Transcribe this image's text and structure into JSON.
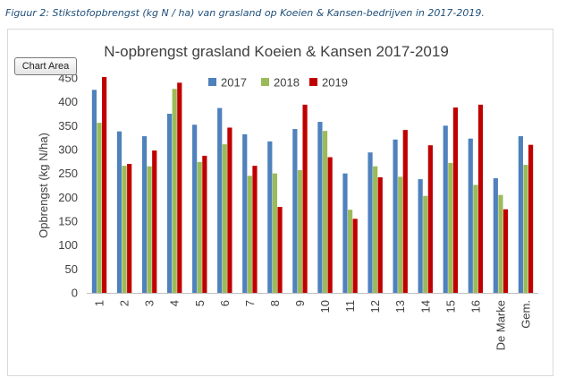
{
  "caption": "Figuur 2: Stikstofopbrengst (kg N / ha) van grasland op Koeien & Kansen-bedrijven in 2017-2019.",
  "chart_area_label": "Chart Area",
  "chart_data": {
    "type": "bar",
    "title": "N-opbrengst grasland Koeien & Kansen 2017-2019",
    "xlabel": "",
    "ylabel": "Opbrengst (kg N/ha)",
    "ylim": [
      0,
      450
    ],
    "yticks": [
      0,
      50,
      100,
      150,
      200,
      250,
      300,
      350,
      400,
      450
    ],
    "grid": false,
    "legend_position": "top",
    "categories": [
      "1",
      "2",
      "3",
      "4",
      "5",
      "6",
      "7",
      "8",
      "9",
      "10",
      "11",
      "12",
      "13",
      "14",
      "15",
      "16",
      "De Marke",
      "Gem."
    ],
    "series": [
      {
        "name": "2017",
        "color": "#4f81bd",
        "values": [
          425,
          338,
          328,
          375,
          352,
          387,
          332,
          317,
          343,
          358,
          250,
          294,
          321,
          238,
          350,
          323,
          240,
          328
        ]
      },
      {
        "name": "2018",
        "color": "#9bbb59",
        "values": [
          356,
          266,
          265,
          427,
          274,
          311,
          245,
          250,
          257,
          339,
          174,
          265,
          243,
          203,
          272,
          226,
          205,
          268
        ]
      },
      {
        "name": "2019",
        "color": "#c00000",
        "values": [
          452,
          270,
          298,
          440,
          287,
          346,
          266,
          180,
          394,
          284,
          155,
          242,
          341,
          309,
          388,
          394,
          175,
          310
        ]
      }
    ]
  }
}
